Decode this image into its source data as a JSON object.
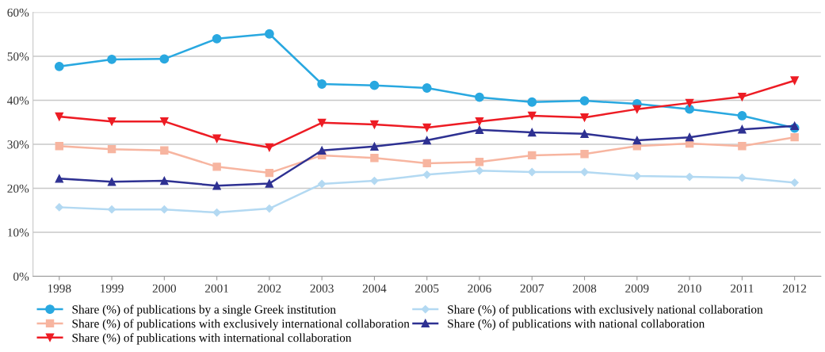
{
  "chart_data": {
    "type": "line",
    "categories": [
      "1998",
      "1999",
      "2000",
      "2001",
      "2002",
      "2003",
      "2004",
      "2005",
      "2006",
      "2007",
      "2008",
      "2009",
      "2010",
      "2011",
      "2012"
    ],
    "ylim": [
      0,
      60
    ],
    "yticks": [
      {
        "value": 0,
        "label": "0%"
      },
      {
        "value": 10,
        "label": "10%"
      },
      {
        "value": 20,
        "label": "20%"
      },
      {
        "value": 30,
        "label": "30%"
      },
      {
        "value": 40,
        "label": "40%"
      },
      {
        "value": 50,
        "label": "50%"
      },
      {
        "value": 60,
        "label": "60%"
      }
    ],
    "grid": "y",
    "legend": "bottom",
    "line_style": "solid",
    "series": [
      {
        "name": "Share (%) of publications by a single Greek institution",
        "color": "#29a8e0",
        "marker": "circle",
        "values": [
          47.7,
          49.3,
          49.4,
          54.0,
          55.1,
          43.7,
          43.4,
          42.8,
          40.7,
          39.6,
          39.9,
          39.2,
          38.0,
          36.5,
          33.7
        ]
      },
      {
        "name": "Share (%) of publications with exclusively national collaboration",
        "color": "#b3d9f2",
        "marker": "diamond",
        "values": [
          15.7,
          15.2,
          15.2,
          14.5,
          15.4,
          21.0,
          21.7,
          23.1,
          24.0,
          23.7,
          23.7,
          22.8,
          22.6,
          22.4,
          21.3
        ]
      },
      {
        "name": "Share (%) of publications with exclusively international collaboration",
        "color": "#f7b5a0",
        "marker": "square",
        "values": [
          29.6,
          28.9,
          28.6,
          24.9,
          23.5,
          27.5,
          26.9,
          25.7,
          26.0,
          27.5,
          27.8,
          29.6,
          30.2,
          29.6,
          31.6
        ]
      },
      {
        "name": "Share (%) of publications with national collaboration",
        "color": "#2e3192",
        "marker": "triangle",
        "values": [
          22.2,
          21.5,
          21.7,
          20.6,
          21.1,
          28.6,
          29.5,
          30.9,
          33.3,
          32.7,
          32.4,
          30.9,
          31.6,
          33.4,
          34.2
        ]
      },
      {
        "name": "Share (%) of publications with international collaboration",
        "color": "#ed1c24",
        "marker": "triangle_down",
        "values": [
          36.3,
          35.2,
          35.2,
          31.3,
          29.3,
          34.9,
          34.5,
          33.8,
          35.2,
          36.5,
          36.1,
          38.0,
          39.4,
          40.8,
          44.5
        ]
      }
    ]
  }
}
